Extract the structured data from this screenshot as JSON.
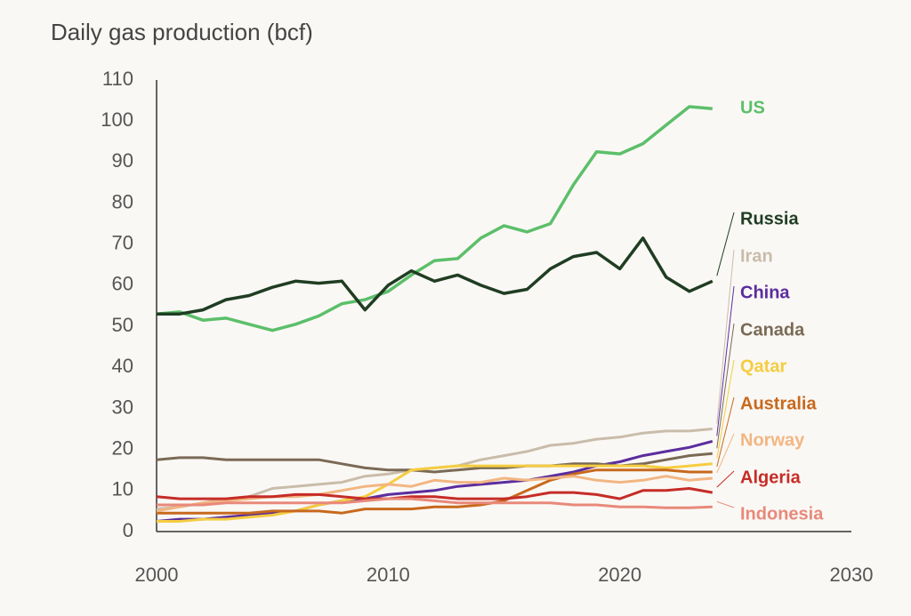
{
  "chart_data": {
    "type": "line",
    "title": "Daily gas production (bcf)",
    "x": [
      2000,
      2001,
      2002,
      2003,
      2004,
      2005,
      2006,
      2007,
      2008,
      2009,
      2010,
      2011,
      2012,
      2013,
      2014,
      2015,
      2016,
      2017,
      2018,
      2019,
      2020,
      2021,
      2022,
      2023,
      2024
    ],
    "xlim": [
      2000,
      2030
    ],
    "xticks": [
      2000,
      2010,
      2020,
      2030
    ],
    "ylim": [
      0,
      110
    ],
    "yticks": [
      0,
      10,
      20,
      30,
      40,
      50,
      60,
      70,
      80,
      90,
      100,
      110
    ],
    "series": [
      {
        "name": "US",
        "color": "#5cbf6a",
        "values": [
          53,
          53.5,
          51.5,
          52,
          50.5,
          49,
          50.5,
          52.5,
          55.5,
          56.5,
          58.5,
          62.5,
          66,
          66.5,
          71.5,
          74.5,
          73,
          75,
          84.5,
          92.5,
          92,
          94.5,
          99,
          103.5,
          103
        ]
      },
      {
        "name": "Russia",
        "color": "#1f3d22",
        "values": [
          53,
          53,
          54,
          56.5,
          57.5,
          59.5,
          61,
          60.5,
          61,
          54,
          60,
          63.5,
          61,
          62.5,
          60,
          58,
          59,
          64,
          67,
          68,
          64,
          71.5,
          62,
          58.5,
          61
        ]
      },
      {
        "name": "Iran",
        "color": "#c9bcaa",
        "values": [
          5.5,
          6,
          7,
          8,
          8.5,
          10.5,
          11,
          11.5,
          12,
          13.5,
          14,
          15,
          15.5,
          16,
          17.5,
          18.5,
          19.5,
          21,
          21.5,
          22.5,
          23,
          24,
          24.5,
          24.5,
          25
        ]
      },
      {
        "name": "China",
        "color": "#5b2d9e",
        "values": [
          2.5,
          3,
          3,
          3.5,
          4,
          4.5,
          5,
          6.5,
          7.5,
          8,
          9,
          9.5,
          10,
          11,
          11.5,
          12,
          12.5,
          13.5,
          14.5,
          16,
          17,
          18.5,
          19.5,
          20.5,
          22
        ]
      },
      {
        "name": "Canada",
        "color": "#7a6a55",
        "values": [
          17.5,
          18,
          18,
          17.5,
          17.5,
          17.5,
          17.5,
          17.5,
          16.5,
          15.5,
          15,
          15,
          14.5,
          15,
          15.5,
          15.5,
          16,
          16,
          16.5,
          16.5,
          16,
          16.5,
          17.5,
          18.5,
          19
        ]
      },
      {
        "name": "Qatar",
        "color": "#f5cd40",
        "values": [
          2.5,
          2.5,
          3,
          3,
          3.5,
          4,
          5,
          6.5,
          7.5,
          8.5,
          11.5,
          15,
          15.5,
          16,
          16,
          16,
          16,
          16,
          16,
          16,
          16,
          16,
          15.5,
          16,
          16.5
        ]
      },
      {
        "name": "Australia",
        "color": "#c8691d",
        "values": [
          4.5,
          4.5,
          4.5,
          4.5,
          4.5,
          5,
          5,
          5,
          4.5,
          5.5,
          5.5,
          5.5,
          6,
          6,
          6.5,
          7.5,
          10,
          12.5,
          14,
          15,
          15,
          15,
          15,
          14.5,
          14.5
        ]
      },
      {
        "name": "Norway",
        "color": "#f2b682",
        "values": [
          5,
          6,
          7,
          7.5,
          8,
          8.5,
          8.5,
          9,
          10,
          11,
          11.5,
          11,
          12.5,
          12,
          12,
          13,
          12.5,
          13,
          13.5,
          12.5,
          12,
          12.5,
          13.5,
          12.5,
          13
        ]
      },
      {
        "name": "Algeria",
        "color": "#c62c27",
        "values": [
          8.5,
          8,
          8,
          8,
          8.5,
          8.5,
          9,
          9,
          8.5,
          8,
          8,
          8.5,
          8.5,
          8,
          8,
          8,
          8.5,
          9.5,
          9.5,
          9,
          8,
          10,
          10,
          10.5,
          9.5
        ]
      },
      {
        "name": "Indonesia",
        "color": "#e8897a",
        "values": [
          6.5,
          6.5,
          6.5,
          7,
          7,
          7,
          7,
          7,
          7,
          7.5,
          8,
          8,
          7.5,
          7,
          7,
          7,
          7,
          7,
          6.5,
          6.5,
          6,
          6,
          5.8,
          5.8,
          6
        ]
      }
    ]
  }
}
